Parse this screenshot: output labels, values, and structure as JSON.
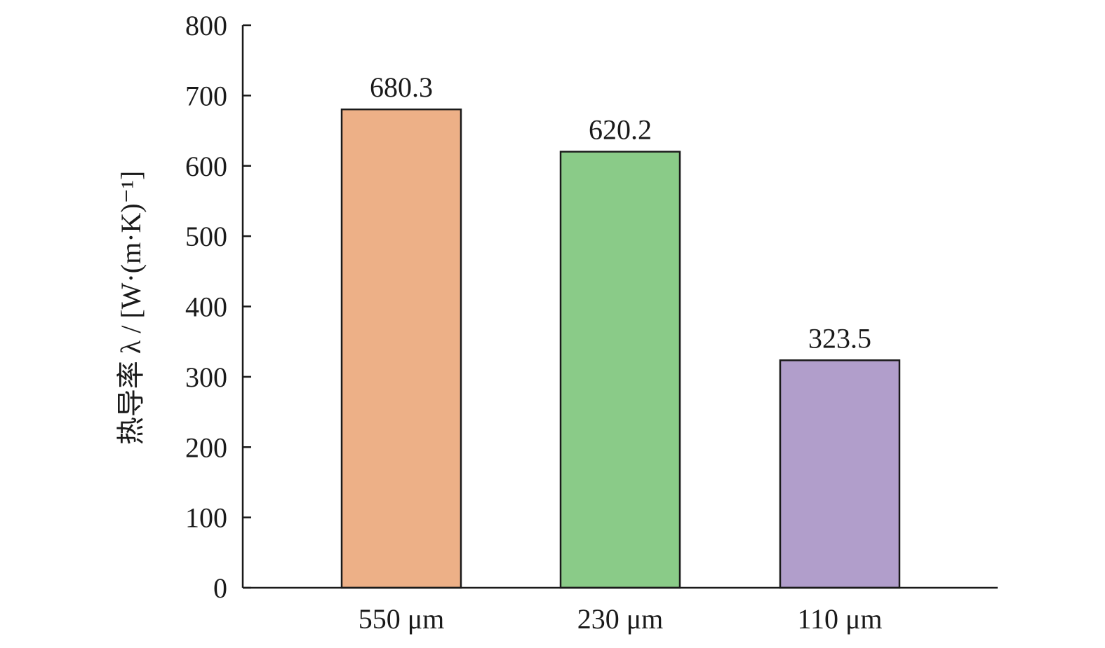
{
  "chart_data": {
    "type": "bar",
    "categories": [
      "550 μm",
      "230 μm",
      "110 μm"
    ],
    "values": [
      680.3,
      620.2,
      323.5
    ],
    "value_labels": [
      "680.3",
      "620.2",
      "323.5"
    ],
    "colors": [
      "#EDB087",
      "#8ACB88",
      "#B19ECB"
    ],
    "ylabel": "热导率 λ / [W·(m·K)⁻¹]",
    "ylim": [
      0,
      800
    ],
    "yticks": [
      0,
      100,
      200,
      300,
      400,
      500,
      600,
      700,
      800
    ],
    "grid": false,
    "legend": "none"
  }
}
